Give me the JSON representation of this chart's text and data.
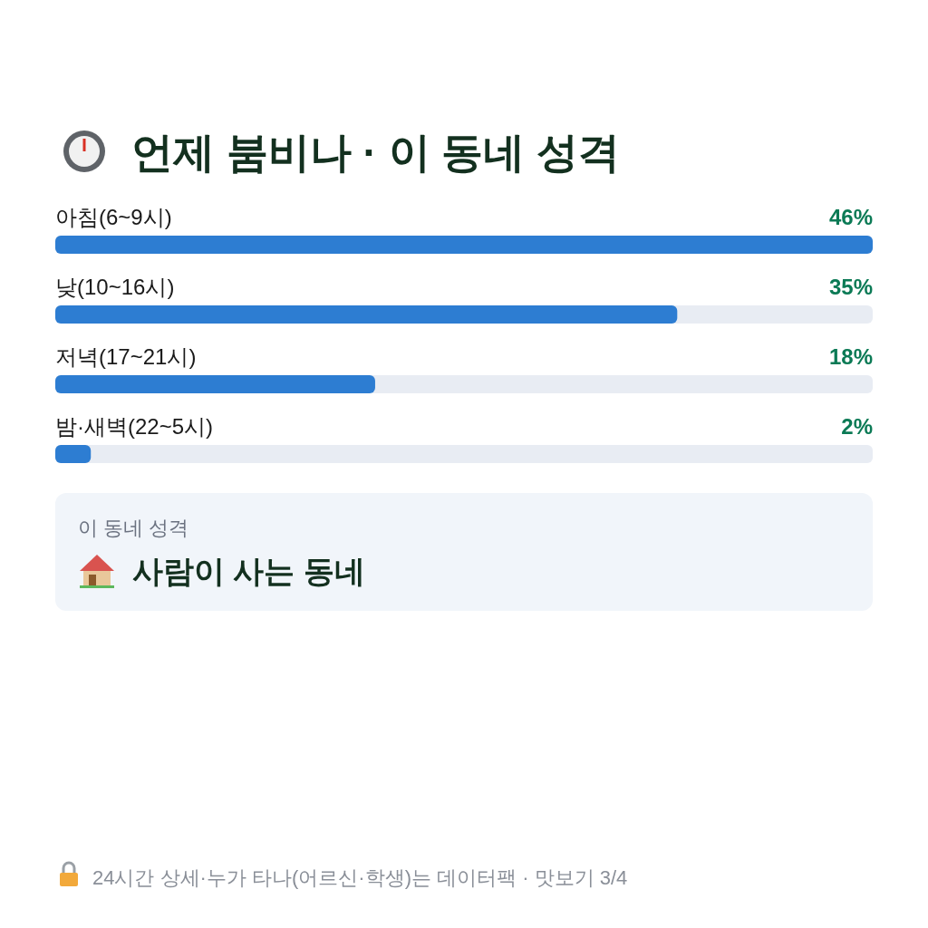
{
  "chart_data": [
    {
      "type": "bar",
      "orientation": "horizontal",
      "title": "언제 붐비나 · 이 동네 성격",
      "categories": [
        "아침(6~9시)",
        "낮(10~16시)",
        "저녁(17~21시)",
        "밤·새벽(22~5시)"
      ],
      "values": [
        46,
        35,
        18,
        2
      ],
      "value_labels": [
        "46%",
        "35%",
        "18%",
        "2%"
      ],
      "color": "#2d7dd2",
      "annotations": [
        "24시간 상세·누가 타나(어르신·학생)는 데이터팩 · 맛보기 3/4"
      ]
    },
    {
      "type": "other",
      "title": "이 동네 성격",
      "annotations": [
        "사람이 사는 동네"
      ]
    }
  ]
}
